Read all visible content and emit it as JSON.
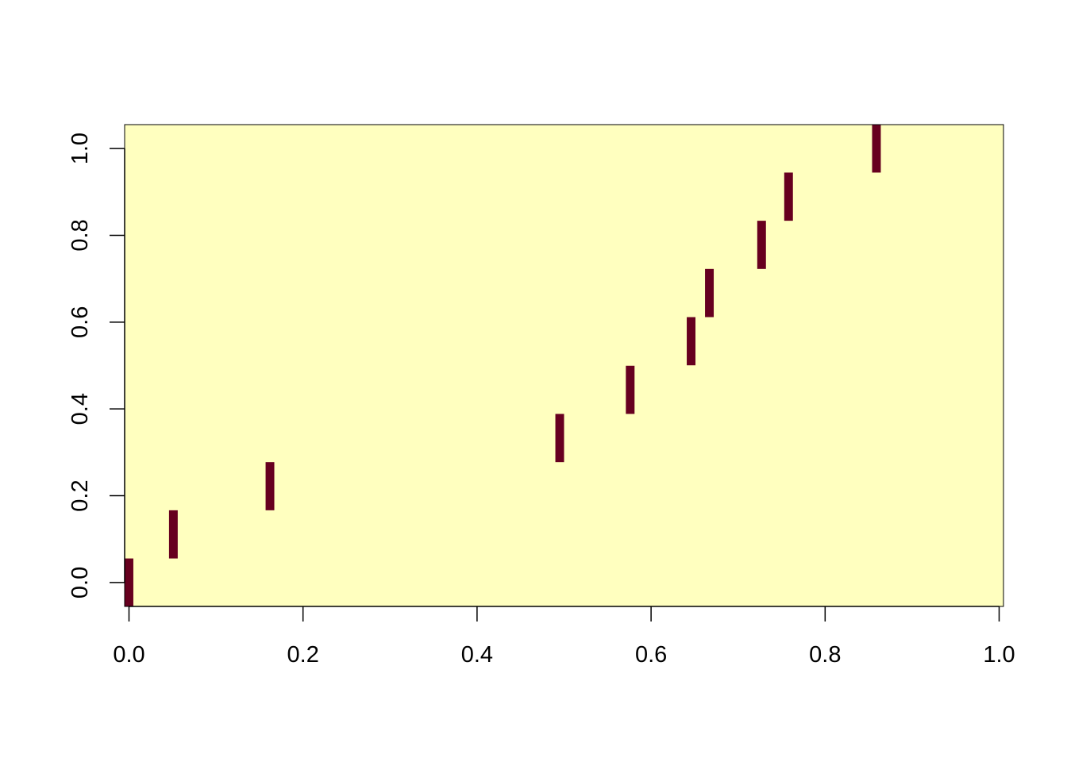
{
  "chart_data": {
    "type": "heatmap",
    "title": "",
    "xlabel": "",
    "ylabel": "",
    "xlim": [
      -0.005,
      1.005
    ],
    "ylim": [
      -0.055,
      1.055
    ],
    "x_ticks": [
      0.0,
      0.2,
      0.4,
      0.6,
      0.8,
      1.0
    ],
    "x_tick_labels": [
      "0.0",
      "0.2",
      "0.4",
      "0.6",
      "0.8",
      "1.0"
    ],
    "y_ticks": [
      0.0,
      0.2,
      0.4,
      0.6,
      0.8,
      1.0
    ],
    "y_tick_labels": [
      "0.0",
      "0.2",
      "0.4",
      "0.6",
      "0.8",
      "1.0"
    ],
    "background_color": "#FFFFBF",
    "cell_color": "#67001F",
    "cell_width": 0.01,
    "cell_height": 0.111,
    "cells": [
      {
        "x": 0.0,
        "y": 0.0
      },
      {
        "x": 0.051,
        "y": 0.111
      },
      {
        "x": 0.162,
        "y": 0.222
      },
      {
        "x": 0.495,
        "y": 0.333
      },
      {
        "x": 0.576,
        "y": 0.444
      },
      {
        "x": 0.646,
        "y": 0.556
      },
      {
        "x": 0.667,
        "y": 0.667
      },
      {
        "x": 0.727,
        "y": 0.778
      },
      {
        "x": 0.758,
        "y": 0.889
      },
      {
        "x": 0.859,
        "y": 1.0
      }
    ],
    "grid": false,
    "legend": "none"
  }
}
